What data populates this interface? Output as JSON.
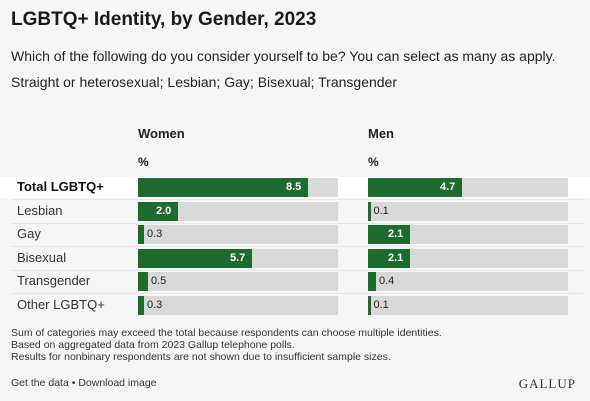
{
  "title": "LGBTQ+ Identity, by Gender, 2023",
  "subtitle": "Which of the following do you consider yourself to be? You can select as many as apply.",
  "subtitle_options": "Straight or heterosexual; Lesbian; Gay; Bisexual; Transgender",
  "colors": {
    "bar": "#1e6b2e",
    "track": "#d9d9d9",
    "background": "#f6f6f6"
  },
  "chart_data": {
    "type": "bar",
    "orientation": "horizontal",
    "categories": [
      "Total LGBTQ+",
      "Lesbian",
      "Gay",
      "Bisexual",
      "Transgender",
      "Other LGBTQ+"
    ],
    "unit": "%",
    "xlim": [
      0,
      10
    ],
    "series": [
      {
        "name": "Women",
        "values": [
          8.5,
          2.0,
          0.3,
          5.7,
          0.5,
          0.3
        ]
      },
      {
        "name": "Men",
        "values": [
          4.7,
          0.1,
          2.1,
          2.1,
          0.4,
          0.1
        ]
      }
    ],
    "value_labels": {
      "Women": [
        "8.5",
        "2.0",
        "0.3",
        "5.7",
        "0.5",
        "0.3"
      ],
      "Men": [
        "4.7",
        "0.1",
        "2.1",
        "2.1",
        "0.4",
        "0.1"
      ]
    }
  },
  "notes": [
    "Sum of categories may exceed the total because respondents can choose multiple identities.",
    "Based on aggregated data from 2023 Gallup telephone polls.",
    "Results for nonbinary respondents are not shown due to insufficient sample sizes."
  ],
  "footer": {
    "get_data": "Get the data",
    "separator": " • ",
    "download": "Download image"
  },
  "logo": "GALLUP"
}
